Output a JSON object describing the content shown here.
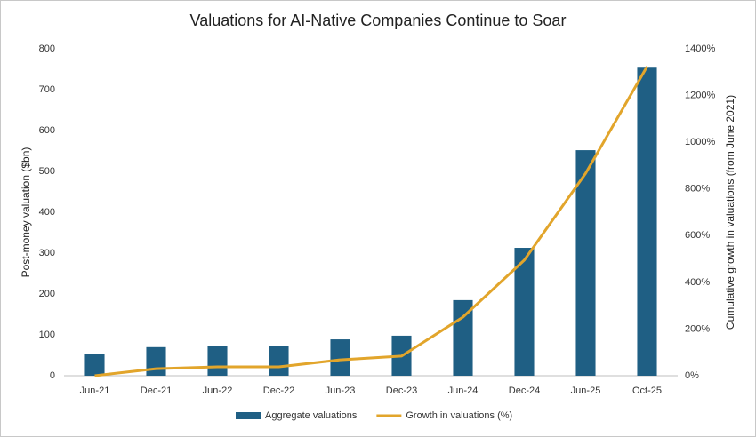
{
  "chart_data": {
    "type": "bar-line",
    "title": "Valuations for AI-Native Companies Continue to Soar",
    "y_label": "Post-money valuation ($bn)",
    "y2_label": "Cumulative growth in valuations (from June 2021)",
    "categories": [
      "Jun-21",
      "Dec-21",
      "Jun-22",
      "Dec-22",
      "Jun-23",
      "Dec-23",
      "Jun-24",
      "Dec-24",
      "Jun-25",
      "Oct-25"
    ],
    "series": [
      {
        "name": "Aggregate valuations",
        "type": "bar",
        "color": "#1f5f84",
        "values": [
          54,
          70,
          72,
          72,
          89,
          98,
          185,
          313,
          552,
          756
        ]
      },
      {
        "name": "Growth in valuations (%)",
        "type": "line",
        "axis": "y2",
        "color": "#e2a52b",
        "values": [
          0,
          30,
          38,
          38,
          68,
          84,
          251,
          495,
          867,
          1324
        ]
      }
    ],
    "ylim": [
      0,
      800
    ],
    "yticks": [
      0,
      100,
      200,
      300,
      400,
      500,
      600,
      700,
      800
    ],
    "y2lim": [
      0,
      1400
    ],
    "y2ticks": [
      {
        "value": 0,
        "label": "0%"
      },
      {
        "value": 200,
        "label": "200%"
      },
      {
        "value": 400,
        "label": "400%"
      },
      {
        "value": 600,
        "label": "600%"
      },
      {
        "value": 800,
        "label": "800%"
      },
      {
        "value": 1000,
        "label": "1000%"
      },
      {
        "value": 1200,
        "label": "1200%"
      },
      {
        "value": 1400,
        "label": "1400%"
      }
    ],
    "grid": false,
    "legend": "bottom"
  }
}
